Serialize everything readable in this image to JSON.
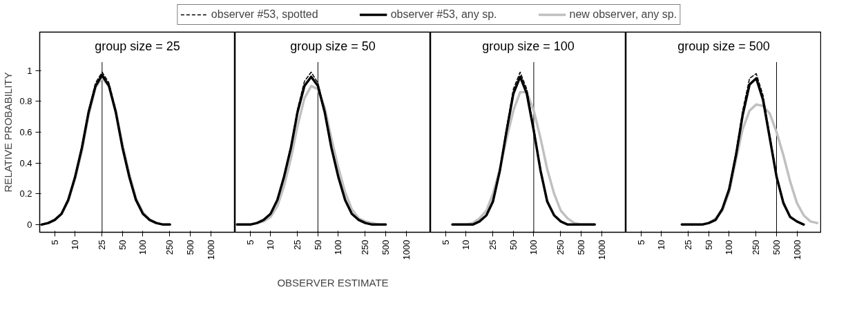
{
  "chart_data": [
    {
      "type": "line",
      "title": "group size = 25",
      "ylabel": "RELATIVE PROBABILITY",
      "log": "x",
      "grid": false,
      "legend": "top",
      "x": [
        3.2,
        4,
        5,
        6.3,
        7.9,
        10,
        12.6,
        15.8,
        20,
        25,
        31.6,
        39.8,
        50,
        63,
        79,
        100,
        126,
        158,
        200,
        251
      ],
      "xlim": [
        3,
        2300
      ],
      "ylim": [
        -0.05,
        1.25
      ],
      "xticks": [
        5,
        10,
        25,
        50,
        100,
        250,
        500,
        1000
      ],
      "yticks": [
        0,
        0.2,
        0.4,
        0.6,
        0.8,
        1
      ],
      "ref_lines": [
        {
          "axis": "x",
          "value": 25,
          "color": "#000000"
        }
      ],
      "series": [
        {
          "name": "observer #53, spotted",
          "color": "#000000",
          "line_style": "dashed",
          "values": [
            0,
            0.01,
            0.03,
            0.07,
            0.16,
            0.32,
            0.51,
            0.74,
            0.92,
            0.99,
            0.92,
            0.74,
            0.51,
            0.32,
            0.16,
            0.07,
            0.03,
            0.01,
            0,
            0
          ]
        },
        {
          "name": "observer #53, any sp.",
          "color": "#000000",
          "line_style": "solid",
          "values": [
            0,
            0.01,
            0.03,
            0.07,
            0.16,
            0.31,
            0.5,
            0.73,
            0.9,
            0.97,
            0.9,
            0.73,
            0.5,
            0.31,
            0.16,
            0.07,
            0.03,
            0.01,
            0,
            0
          ]
        },
        {
          "name": "new observer, any sp.",
          "color": "#c0c0c0",
          "line_style": "solid",
          "values": [
            0,
            0.01,
            0.03,
            0.07,
            0.15,
            0.3,
            0.48,
            0.71,
            0.89,
            0.95,
            0.9,
            0.74,
            0.52,
            0.33,
            0.17,
            0.08,
            0.03,
            0.01,
            0,
            0
          ]
        }
      ]
    },
    {
      "type": "line",
      "title": "group size = 50",
      "xlabel": "OBSERVER ESTIMATE",
      "log": "x",
      "grid": false,
      "tick_labels": "x",
      "x": [
        3.2,
        4,
        5,
        6.3,
        7.9,
        10,
        12.6,
        15.8,
        20,
        25,
        31.6,
        39.8,
        50,
        63,
        79,
        100,
        126,
        158,
        200,
        251,
        316,
        398,
        501
      ],
      "xlim": [
        3,
        2300
      ],
      "ylim": [
        -0.05,
        1.25
      ],
      "xticks": [
        5,
        10,
        25,
        50,
        100,
        250,
        500,
        1000
      ],
      "ref_lines": [
        {
          "axis": "x",
          "value": 50,
          "color": "#000000"
        }
      ],
      "series": [
        {
          "color": "#000000",
          "line_style": "dashed",
          "values": [
            0,
            0,
            0,
            0.01,
            0.03,
            0.07,
            0.16,
            0.32,
            0.51,
            0.75,
            0.93,
            0.99,
            0.92,
            0.74,
            0.51,
            0.32,
            0.16,
            0.07,
            0.03,
            0.01,
            0,
            0,
            0
          ]
        },
        {
          "color": "#000000",
          "line_style": "solid",
          "values": [
            0,
            0,
            0,
            0.01,
            0.03,
            0.07,
            0.16,
            0.31,
            0.5,
            0.73,
            0.9,
            0.96,
            0.9,
            0.73,
            0.5,
            0.31,
            0.16,
            0.07,
            0.03,
            0.01,
            0,
            0,
            0
          ]
        },
        {
          "color": "#c0c0c0",
          "line_style": "solid",
          "values": [
            0,
            0,
            0,
            0.01,
            0.02,
            0.05,
            0.12,
            0.25,
            0.43,
            0.64,
            0.82,
            0.9,
            0.88,
            0.76,
            0.56,
            0.37,
            0.21,
            0.1,
            0.04,
            0.02,
            0.01,
            0,
            null
          ]
        }
      ]
    },
    {
      "type": "line",
      "title": "group size = 100",
      "log": "x",
      "grid": false,
      "tick_labels": "x",
      "x": [
        6.3,
        7.9,
        10,
        12.6,
        15.8,
        20,
        25,
        31.6,
        39.8,
        50,
        63,
        79,
        100,
        126,
        158,
        200,
        251,
        316,
        398,
        501,
        631,
        794
      ],
      "xlim": [
        3,
        2300
      ],
      "ylim": [
        -0.05,
        1.25
      ],
      "xticks": [
        5,
        10,
        25,
        50,
        100,
        250,
        500,
        1000
      ],
      "ref_lines": [
        {
          "axis": "x",
          "value": 100,
          "color": "#000000"
        }
      ],
      "series": [
        {
          "color": "#000000",
          "line_style": "dashed",
          "values": [
            0,
            0,
            0,
            0,
            0.02,
            0.06,
            0.16,
            0.36,
            0.63,
            0.88,
            0.99,
            0.88,
            0.63,
            0.36,
            0.16,
            0.06,
            0.02,
            0,
            0,
            0,
            0,
            0
          ]
        },
        {
          "color": "#000000",
          "line_style": "solid",
          "values": [
            0,
            0,
            0,
            0,
            0.02,
            0.06,
            0.15,
            0.35,
            0.61,
            0.85,
            0.96,
            0.85,
            0.61,
            0.35,
            0.15,
            0.06,
            0.02,
            0,
            0,
            0,
            0,
            0
          ]
        },
        {
          "color": "#c0c0c0",
          "line_style": "solid",
          "values": [
            0,
            0,
            0,
            0.01,
            0.04,
            0.09,
            0.2,
            0.36,
            0.56,
            0.74,
            0.86,
            0.86,
            0.74,
            0.56,
            0.36,
            0.2,
            0.09,
            0.04,
            0.01,
            0,
            0,
            0
          ]
        }
      ]
    },
    {
      "type": "line",
      "title": "group size = 500",
      "log": "x",
      "grid": false,
      "tick_labels": "x",
      "x": [
        20,
        25,
        31.6,
        39.8,
        50,
        63,
        79,
        100,
        126,
        158,
        200,
        251,
        316,
        398,
        501,
        631,
        794,
        1000,
        1259,
        1585,
        1995
      ],
      "xlim": [
        3,
        2300
      ],
      "ylim": [
        -0.05,
        1.25
      ],
      "xticks": [
        5,
        10,
        25,
        50,
        100,
        250,
        500,
        1000
      ],
      "ref_lines": [
        {
          "axis": "x",
          "value": 500,
          "color": "#000000"
        }
      ],
      "series": [
        {
          "color": "#000000",
          "line_style": "dashed",
          "values": [
            0,
            0,
            0,
            0,
            0.01,
            0.03,
            0.1,
            0.24,
            0.47,
            0.74,
            0.95,
            0.98,
            0.84,
            0.58,
            0.32,
            0.15,
            0.05,
            0.02,
            0,
            null,
            null
          ]
        },
        {
          "color": "#000000",
          "line_style": "solid",
          "values": [
            0,
            0,
            0,
            0,
            0.01,
            0.03,
            0.1,
            0.23,
            0.45,
            0.71,
            0.91,
            0.95,
            0.81,
            0.56,
            0.31,
            0.14,
            0.05,
            0.02,
            0,
            null,
            null
          ]
        },
        {
          "color": "#c0c0c0",
          "line_style": "solid",
          "values": [
            0,
            0,
            0,
            0,
            0.01,
            0.04,
            0.09,
            0.21,
            0.42,
            0.62,
            0.74,
            0.78,
            0.77,
            0.72,
            0.6,
            0.45,
            0.28,
            0.14,
            0.06,
            0.02,
            0.01
          ]
        }
      ]
    }
  ]
}
